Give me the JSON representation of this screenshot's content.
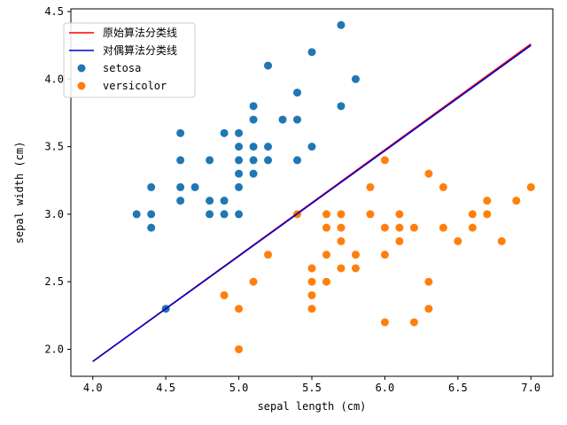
{
  "chart_data": {
    "type": "scatter",
    "title": "",
    "xlabel": "sepal length (cm)",
    "ylabel": "sepal width (cm)",
    "xlim": [
      3.85,
      7.15
    ],
    "ylim": [
      1.8,
      4.52
    ],
    "xticks": [
      "4.0",
      "4.5",
      "5.0",
      "5.5",
      "6.0",
      "6.5",
      "7.0"
    ],
    "yticks": [
      "2.0",
      "2.5",
      "3.0",
      "3.5",
      "4.0",
      "4.5"
    ],
    "grid": false,
    "legend_position": "top-left",
    "lines": [
      {
        "name": "原始算法分类线",
        "color": "#ff0000",
        "x": [
          4.0,
          7.0
        ],
        "y": [
          1.91,
          4.26
        ]
      },
      {
        "name": "对偶算法分类线",
        "color": "#0000cc",
        "x": [
          4.0,
          7.0
        ],
        "y": [
          1.91,
          4.25
        ]
      }
    ],
    "series": [
      {
        "name": "setosa",
        "color": "#1f77b4",
        "points": [
          [
            4.3,
            3.0
          ],
          [
            4.4,
            2.9
          ],
          [
            4.4,
            3.0
          ],
          [
            4.4,
            3.2
          ],
          [
            4.5,
            2.3
          ],
          [
            4.6,
            3.1
          ],
          [
            4.6,
            3.2
          ],
          [
            4.6,
            3.4
          ],
          [
            4.6,
            3.6
          ],
          [
            4.7,
            3.2
          ],
          [
            4.8,
            3.0
          ],
          [
            4.8,
            3.1
          ],
          [
            4.8,
            3.4
          ],
          [
            4.9,
            3.0
          ],
          [
            4.9,
            3.1
          ],
          [
            4.9,
            3.6
          ],
          [
            5.0,
            3.0
          ],
          [
            5.0,
            3.2
          ],
          [
            5.0,
            3.3
          ],
          [
            5.0,
            3.4
          ],
          [
            5.0,
            3.5
          ],
          [
            5.0,
            3.6
          ],
          [
            5.1,
            3.3
          ],
          [
            5.1,
            3.4
          ],
          [
            5.1,
            3.5
          ],
          [
            5.1,
            3.7
          ],
          [
            5.1,
            3.8
          ],
          [
            5.2,
            3.4
          ],
          [
            5.2,
            3.5
          ],
          [
            5.2,
            4.1
          ],
          [
            5.3,
            3.7
          ],
          [
            5.4,
            3.4
          ],
          [
            5.4,
            3.7
          ],
          [
            5.4,
            3.9
          ],
          [
            5.5,
            3.5
          ],
          [
            5.5,
            4.2
          ],
          [
            5.7,
            3.8
          ],
          [
            5.7,
            4.4
          ],
          [
            5.8,
            4.0
          ]
        ]
      },
      {
        "name": "versicolor",
        "color": "#ff7f0e",
        "points": [
          [
            4.9,
            2.4
          ],
          [
            5.0,
            2.0
          ],
          [
            5.0,
            2.3
          ],
          [
            5.1,
            2.5
          ],
          [
            5.2,
            2.7
          ],
          [
            5.4,
            3.0
          ],
          [
            5.5,
            2.3
          ],
          [
            5.5,
            2.4
          ],
          [
            5.5,
            2.5
          ],
          [
            5.5,
            2.6
          ],
          [
            5.6,
            2.5
          ],
          [
            5.6,
            2.7
          ],
          [
            5.6,
            2.9
          ],
          [
            5.6,
            3.0
          ],
          [
            5.7,
            2.6
          ],
          [
            5.7,
            2.8
          ],
          [
            5.7,
            2.9
          ],
          [
            5.7,
            3.0
          ],
          [
            5.8,
            2.6
          ],
          [
            5.8,
            2.7
          ],
          [
            5.9,
            3.0
          ],
          [
            5.9,
            3.2
          ],
          [
            6.0,
            2.2
          ],
          [
            6.0,
            2.7
          ],
          [
            6.0,
            2.9
          ],
          [
            6.0,
            3.4
          ],
          [
            6.1,
            2.8
          ],
          [
            6.1,
            2.9
          ],
          [
            6.1,
            3.0
          ],
          [
            6.2,
            2.2
          ],
          [
            6.2,
            2.9
          ],
          [
            6.3,
            2.3
          ],
          [
            6.3,
            2.5
          ],
          [
            6.3,
            3.3
          ],
          [
            6.4,
            2.9
          ],
          [
            6.4,
            3.2
          ],
          [
            6.5,
            2.8
          ],
          [
            6.6,
            2.9
          ],
          [
            6.6,
            3.0
          ],
          [
            6.7,
            3.0
          ],
          [
            6.7,
            3.1
          ],
          [
            6.8,
            2.8
          ],
          [
            6.9,
            3.1
          ],
          [
            7.0,
            3.2
          ]
        ]
      }
    ]
  }
}
